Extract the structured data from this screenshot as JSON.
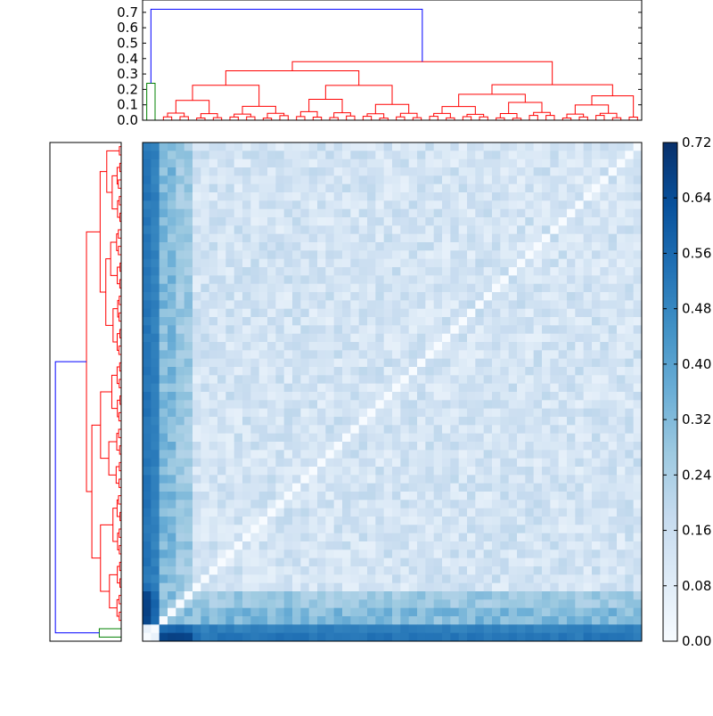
{
  "chart_data": [
    {
      "type": "dendrogram",
      "name": "top-dendrogram",
      "orientation": "top",
      "yticks": [
        "0.0",
        "0.1",
        "0.2",
        "0.3",
        "0.4",
        "0.5",
        "0.6",
        "0.7"
      ],
      "ylim": [
        0,
        0.78
      ],
      "leaf_count": 60,
      "colors": {
        "cluster": "#ff0000",
        "outlier": "#008000",
        "root": "#0000ff"
      },
      "root_height": 0.72,
      "outlier_merge_height": 0.24,
      "main_cluster_height": 0.38
    },
    {
      "type": "dendrogram",
      "name": "left-dendrogram",
      "orientation": "left",
      "leaf_count": 60,
      "colors": {
        "cluster": "#ff0000",
        "outlier": "#008000",
        "root": "#0000ff"
      }
    },
    {
      "type": "heatmap",
      "name": "distance-matrix",
      "size": 60,
      "colormap": "Blues",
      "vmin": 0.0,
      "vmax": 0.72,
      "description_of_structure": {
        "first_leaf_column_values": 0.52,
        "diagonal_value": 0.0,
        "bulk_range": [
          0.05,
          0.22
        ],
        "outlier_pair_values": [
          0.72,
          0.62
        ]
      }
    },
    {
      "type": "colorbar",
      "name": "colorbar",
      "ticks": [
        "0.00",
        "0.08",
        "0.16",
        "0.24",
        "0.32",
        "0.40",
        "0.48",
        "0.56",
        "0.64",
        "0.72"
      ],
      "colormap": "Blues"
    }
  ]
}
